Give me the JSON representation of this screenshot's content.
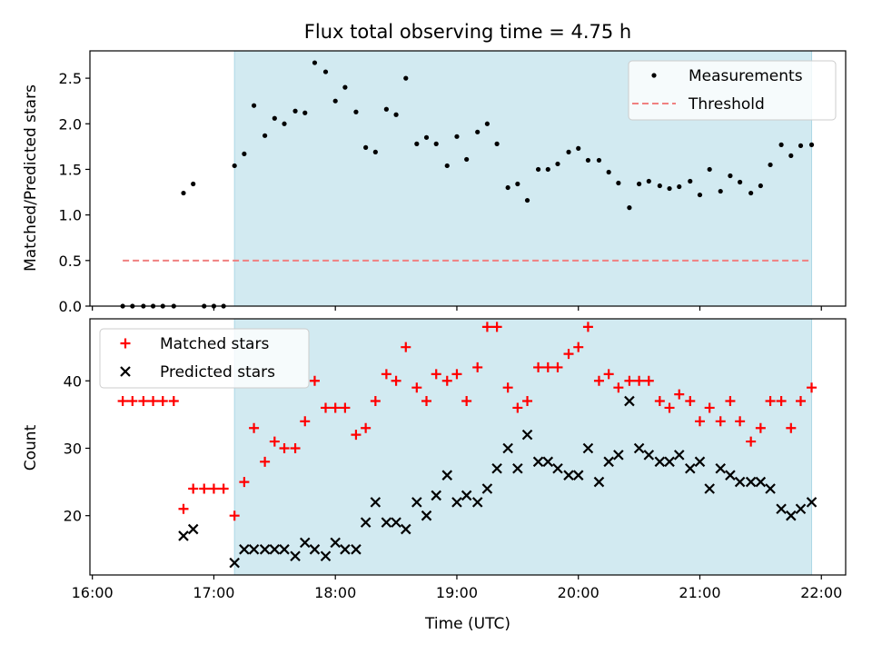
{
  "chart_data": {
    "title": "Flux total observing time = 4.75 h",
    "xlabel": "Time (UTC)",
    "x_tick_labels": [
      "16:00",
      "17:00",
      "18:00",
      "19:00",
      "20:00",
      "21:00",
      "22:00"
    ],
    "x_ticks_hours": [
      16,
      17,
      18,
      19,
      20,
      21,
      22
    ],
    "xlim_hours": [
      15.98,
      22.2
    ],
    "shaded_region_hours": [
      17.17,
      21.92
    ],
    "shade_color": "#add8e6",
    "panels": [
      {
        "type": "scatter",
        "ylabel": "Matched/Predicted stars",
        "ylim": [
          0,
          2.8
        ],
        "y_ticks": [
          0.0,
          0.5,
          1.0,
          1.5,
          2.0,
          2.5
        ],
        "y_tick_labels": [
          "0.0",
          "0.5",
          "1.0",
          "1.5",
          "2.0",
          "2.5"
        ],
        "legend_position": "top-right",
        "series": [
          {
            "name": "Measurements",
            "marker": "dot",
            "color": "#000000",
            "points": [
              [
                16.25,
                0
              ],
              [
                16.33,
                0
              ],
              [
                16.42,
                0
              ],
              [
                16.5,
                0
              ],
              [
                16.58,
                0
              ],
              [
                16.67,
                0
              ],
              [
                16.75,
                1.24
              ],
              [
                16.83,
                1.34
              ],
              [
                16.92,
                0
              ],
              [
                17.0,
                0
              ],
              [
                17.08,
                0
              ],
              [
                17.17,
                1.54
              ],
              [
                17.25,
                1.67
              ],
              [
                17.33,
                2.2
              ],
              [
                17.42,
                1.87
              ],
              [
                17.5,
                2.06
              ],
              [
                17.58,
                2.0
              ],
              [
                17.67,
                2.14
              ],
              [
                17.75,
                2.12
              ],
              [
                17.83,
                2.67
              ],
              [
                17.92,
                2.57
              ],
              [
                18.0,
                2.25
              ],
              [
                18.08,
                2.4
              ],
              [
                18.17,
                2.13
              ],
              [
                18.25,
                1.74
              ],
              [
                18.33,
                1.69
              ],
              [
                18.42,
                2.16
              ],
              [
                18.5,
                2.1
              ],
              [
                18.58,
                2.5
              ],
              [
                18.67,
                1.78
              ],
              [
                18.75,
                1.85
              ],
              [
                18.83,
                1.78
              ],
              [
                18.92,
                1.54
              ],
              [
                19.0,
                1.86
              ],
              [
                19.08,
                1.61
              ],
              [
                19.17,
                1.91
              ],
              [
                19.25,
                2.0
              ],
              [
                19.33,
                1.78
              ],
              [
                19.42,
                1.3
              ],
              [
                19.5,
                1.34
              ],
              [
                19.58,
                1.16
              ],
              [
                19.67,
                1.5
              ],
              [
                19.75,
                1.5
              ],
              [
                19.83,
                1.56
              ],
              [
                19.92,
                1.69
              ],
              [
                20.0,
                1.73
              ],
              [
                20.08,
                1.6
              ],
              [
                20.17,
                1.6
              ],
              [
                20.25,
                1.47
              ],
              [
                20.33,
                1.35
              ],
              [
                20.42,
                1.08
              ],
              [
                20.5,
                1.34
              ],
              [
                20.58,
                1.37
              ],
              [
                20.67,
                1.32
              ],
              [
                20.75,
                1.29
              ],
              [
                20.83,
                1.31
              ],
              [
                20.92,
                1.37
              ],
              [
                21.0,
                1.22
              ],
              [
                21.08,
                1.5
              ],
              [
                21.17,
                1.26
              ],
              [
                21.25,
                1.43
              ],
              [
                21.33,
                1.36
              ],
              [
                21.42,
                1.24
              ],
              [
                21.5,
                1.32
              ],
              [
                21.58,
                1.55
              ],
              [
                21.67,
                1.77
              ],
              [
                21.75,
                1.65
              ],
              [
                21.83,
                1.76
              ],
              [
                21.92,
                1.77
              ]
            ]
          },
          {
            "name": "Threshold",
            "line_style": "dashed",
            "color": "#f08080",
            "x_range_hours": [
              16.25,
              21.92
            ],
            "value": 0.5
          }
        ]
      },
      {
        "type": "scatter",
        "ylabel": "Count",
        "ylim": [
          11.2,
          49.2
        ],
        "y_ticks": [
          20,
          30,
          40
        ],
        "y_tick_labels": [
          "20",
          "30",
          "40"
        ],
        "legend_position": "top-left",
        "series": [
          {
            "name": "Matched stars",
            "marker": "plus",
            "color": "#ff0000",
            "points": [
              [
                16.25,
                37
              ],
              [
                16.33,
                37
              ],
              [
                16.42,
                37
              ],
              [
                16.5,
                37
              ],
              [
                16.58,
                37
              ],
              [
                16.67,
                37
              ],
              [
                16.75,
                21
              ],
              [
                16.83,
                24
              ],
              [
                16.92,
                24
              ],
              [
                17.0,
                24
              ],
              [
                17.08,
                24
              ],
              [
                17.17,
                20
              ],
              [
                17.25,
                25
              ],
              [
                17.33,
                33
              ],
              [
                17.42,
                28
              ],
              [
                17.5,
                31
              ],
              [
                17.58,
                30
              ],
              [
                17.67,
                30
              ],
              [
                17.75,
                34
              ],
              [
                17.83,
                40
              ],
              [
                17.92,
                36
              ],
              [
                18.0,
                36
              ],
              [
                18.08,
                36
              ],
              [
                18.17,
                32
              ],
              [
                18.25,
                33
              ],
              [
                18.33,
                37
              ],
              [
                18.42,
                41
              ],
              [
                18.5,
                40
              ],
              [
                18.58,
                45
              ],
              [
                18.67,
                39
              ],
              [
                18.75,
                37
              ],
              [
                18.83,
                41
              ],
              [
                18.92,
                40
              ],
              [
                19.0,
                41
              ],
              [
                19.08,
                37
              ],
              [
                19.17,
                42
              ],
              [
                19.25,
                48
              ],
              [
                19.33,
                48
              ],
              [
                19.42,
                39
              ],
              [
                19.5,
                36
              ],
              [
                19.58,
                37
              ],
              [
                19.67,
                42
              ],
              [
                19.75,
                42
              ],
              [
                19.83,
                42
              ],
              [
                19.92,
                44
              ],
              [
                20.0,
                45
              ],
              [
                20.08,
                48
              ],
              [
                20.17,
                40
              ],
              [
                20.25,
                41
              ],
              [
                20.33,
                39
              ],
              [
                20.42,
                40
              ],
              [
                20.5,
                40
              ],
              [
                20.58,
                40
              ],
              [
                20.67,
                37
              ],
              [
                20.75,
                36
              ],
              [
                20.83,
                38
              ],
              [
                20.92,
                37
              ],
              [
                21.0,
                34
              ],
              [
                21.08,
                36
              ],
              [
                21.17,
                34
              ],
              [
                21.25,
                37
              ],
              [
                21.33,
                34
              ],
              [
                21.42,
                31
              ],
              [
                21.5,
                33
              ],
              [
                21.58,
                37
              ],
              [
                21.67,
                37
              ],
              [
                21.75,
                33
              ],
              [
                21.83,
                37
              ],
              [
                21.92,
                39
              ]
            ]
          },
          {
            "name": "Predicted stars",
            "marker": "x",
            "color": "#000000",
            "points": [
              [
                16.75,
                17
              ],
              [
                16.83,
                18
              ],
              [
                17.17,
                13
              ],
              [
                17.25,
                15
              ],
              [
                17.33,
                15
              ],
              [
                17.42,
                15
              ],
              [
                17.5,
                15
              ],
              [
                17.58,
                15
              ],
              [
                17.67,
                14
              ],
              [
                17.75,
                16
              ],
              [
                17.83,
                15
              ],
              [
                17.92,
                14
              ],
              [
                18.0,
                16
              ],
              [
                18.08,
                15
              ],
              [
                18.17,
                15
              ],
              [
                18.25,
                19
              ],
              [
                18.33,
                22
              ],
              [
                18.42,
                19
              ],
              [
                18.5,
                19
              ],
              [
                18.58,
                18
              ],
              [
                18.67,
                22
              ],
              [
                18.75,
                20
              ],
              [
                18.83,
                23
              ],
              [
                18.92,
                26
              ],
              [
                19.0,
                22
              ],
              [
                19.08,
                23
              ],
              [
                19.17,
                22
              ],
              [
                19.25,
                24
              ],
              [
                19.33,
                27
              ],
              [
                19.42,
                30
              ],
              [
                19.5,
                27
              ],
              [
                19.58,
                32
              ],
              [
                19.67,
                28
              ],
              [
                19.75,
                28
              ],
              [
                19.83,
                27
              ],
              [
                19.92,
                26
              ],
              [
                20.0,
                26
              ],
              [
                20.08,
                30
              ],
              [
                20.17,
                25
              ],
              [
                20.25,
                28
              ],
              [
                20.33,
                29
              ],
              [
                20.42,
                37
              ],
              [
                20.5,
                30
              ],
              [
                20.58,
                29
              ],
              [
                20.67,
                28
              ],
              [
                20.75,
                28
              ],
              [
                20.83,
                29
              ],
              [
                20.92,
                27
              ],
              [
                21.0,
                28
              ],
              [
                21.08,
                24
              ],
              [
                21.17,
                27
              ],
              [
                21.25,
                26
              ],
              [
                21.33,
                25
              ],
              [
                21.42,
                25
              ],
              [
                21.5,
                25
              ],
              [
                21.58,
                24
              ],
              [
                21.67,
                21
              ],
              [
                21.75,
                20
              ],
              [
                21.83,
                21
              ],
              [
                21.92,
                22
              ]
            ]
          }
        ]
      }
    ]
  }
}
